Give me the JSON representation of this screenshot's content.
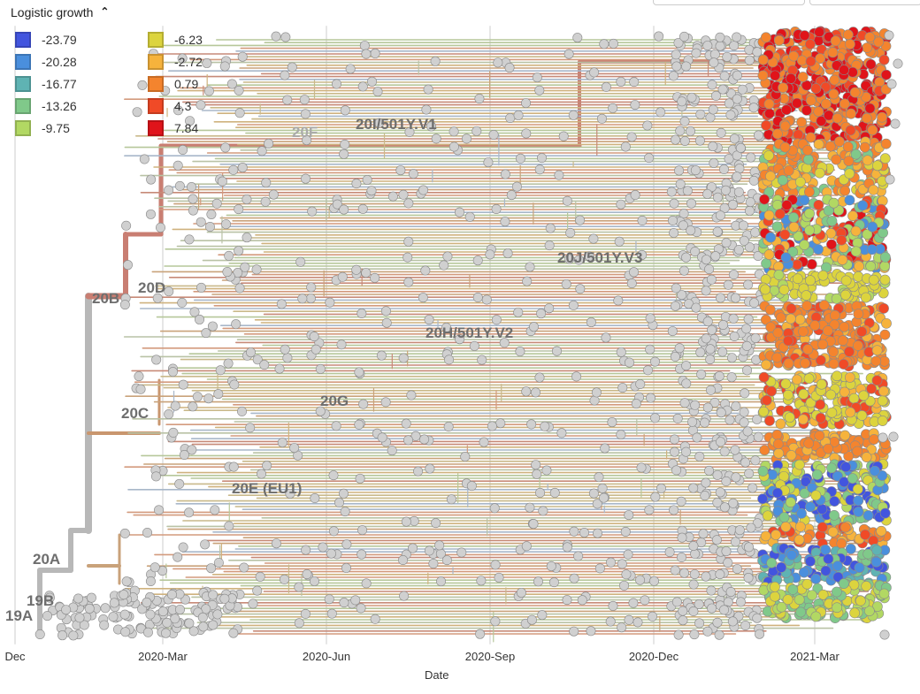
{
  "panel": {
    "legend_title": "Logistic growth",
    "legend_toggle_icon": "chevron-up-icon"
  },
  "legend": [
    {
      "label": "-23.79",
      "color": "#4255de"
    },
    {
      "label": "-20.28",
      "color": "#4a8fdd"
    },
    {
      "label": "-16.77",
      "color": "#5fb3b3"
    },
    {
      "label": "-13.26",
      "color": "#80c98a"
    },
    {
      "label": "-9.75",
      "color": "#b2d863"
    },
    {
      "label": "-6.23",
      "color": "#dcd43e"
    },
    {
      "label": "-2.72",
      "color": "#f6b33c"
    },
    {
      "label": "0.79",
      "color": "#f4842e"
    },
    {
      "label": "4.3",
      "color": "#f04a27"
    },
    {
      "label": "7.84",
      "color": "#e0141a"
    }
  ],
  "clades": [
    {
      "label": "19A"
    },
    {
      "label": "19B"
    },
    {
      "label": "20A"
    },
    {
      "label": "20B"
    },
    {
      "label": "20C"
    },
    {
      "label": "20D"
    },
    {
      "label": "20E (EU1)"
    },
    {
      "label": "20F"
    },
    {
      "label": "20G"
    },
    {
      "label": "20H/501Y.V2"
    },
    {
      "label": "20I/501Y.V1"
    },
    {
      "label": "20J/501Y.V3"
    }
  ],
  "x_axis": {
    "title": "Date",
    "ticks": [
      "Dec",
      "2020-Mar",
      "2020-Jun",
      "2020-Sep",
      "2020-Dec",
      "2021-Mar"
    ]
  },
  "colors": {
    "trunk": "#b8b8b8",
    "tip_gray": "#d0d0d0",
    "grid": "#e6e6e6"
  }
}
